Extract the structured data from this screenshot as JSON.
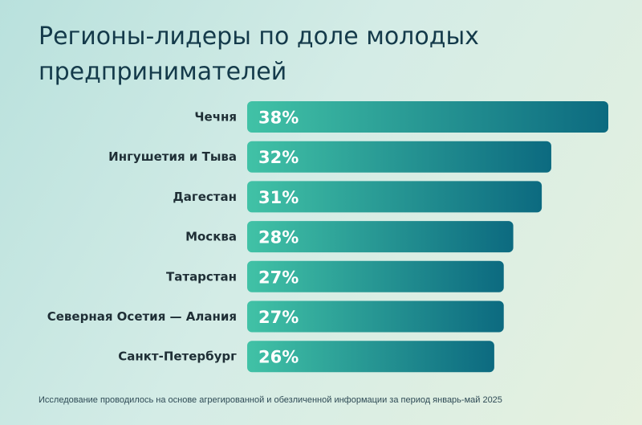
{
  "title": "Регионы-лидеры по доле молодых предпринимателей",
  "footnote": "Исследование проводилось на основе агрегированной и обезличенной информации за период январь-май 2025",
  "colors": {
    "bar_start": "#41c2a6",
    "bar_end": "#0c6a80",
    "label_text": "#1f2f36",
    "value_text": "#ffffff"
  },
  "chart_data": {
    "type": "bar",
    "orientation": "horizontal",
    "categories": [
      "Чечня",
      "Ингушетия и Тыва",
      "Дагестан",
      "Москва",
      "Татарстан",
      "Северная Осетия — Алания",
      "Санкт-Петербург"
    ],
    "values": [
      38,
      32,
      31,
      28,
      27,
      27,
      26
    ],
    "value_labels": [
      "38%",
      "32%",
      "31%",
      "28%",
      "27%",
      "27%",
      "26%"
    ],
    "unit": "%",
    "xlim": [
      0,
      38
    ],
    "grid": false,
    "legend": "none"
  }
}
